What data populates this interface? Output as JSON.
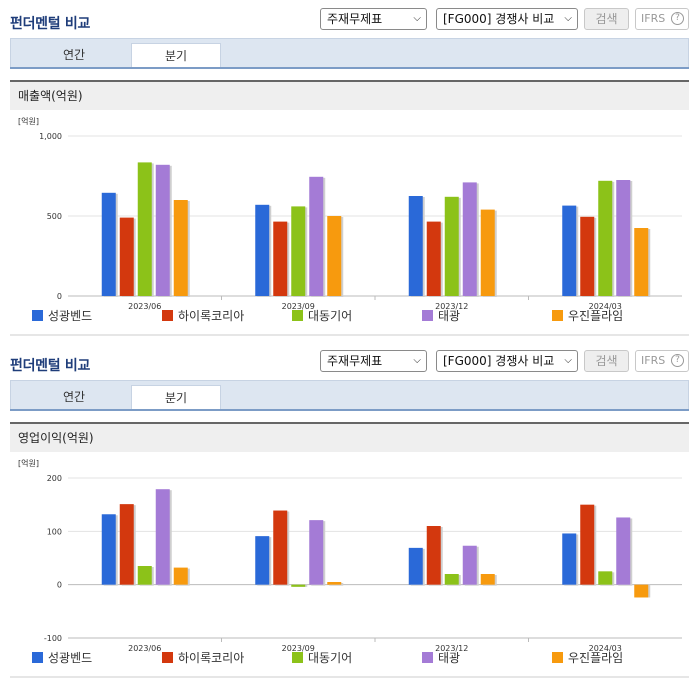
{
  "toolbar": {
    "title": "펀더멘털 비교",
    "select_type": "주재무제표",
    "select_peer": "[FG000] 경쟁사 비교",
    "search_label": "검색",
    "ifrs_label": "IFRS",
    "help_glyph": "?"
  },
  "tabs": {
    "annual": "연간",
    "quarterly": "분기",
    "active": "quarterly"
  },
  "colors": [
    "#2a69d8",
    "#d3380e",
    "#8cc219",
    "#a47bd6",
    "#f79a0e"
  ],
  "chart_data": [
    {
      "type": "bar",
      "title": "매출액(억원)",
      "unit": "[억원]",
      "categories": [
        "2023/06",
        "2023/09",
        "2023/12",
        "2024/03"
      ],
      "ylim": [
        0,
        1000
      ],
      "yticks": [
        0,
        500,
        1000
      ],
      "ytick_labels": [
        "0",
        "500",
        "1,000"
      ],
      "grid": true,
      "legend_position": "bottom",
      "series": [
        {
          "name": "성광벤드",
          "values": [
            645,
            570,
            625,
            565
          ]
        },
        {
          "name": "하이록코리아",
          "values": [
            490,
            465,
            465,
            495
          ]
        },
        {
          "name": "대동기어",
          "values": [
            835,
            560,
            620,
            720
          ]
        },
        {
          "name": "태광",
          "values": [
            820,
            745,
            710,
            725
          ]
        },
        {
          "name": "우진플라임",
          "values": [
            600,
            500,
            540,
            425
          ]
        }
      ]
    },
    {
      "type": "bar",
      "title": "영업이익(억원)",
      "unit": "[억원]",
      "categories": [
        "2023/06",
        "2023/09",
        "2023/12",
        "2024/03"
      ],
      "ylim": [
        -100,
        200
      ],
      "yticks": [
        -100,
        0,
        100,
        200
      ],
      "ytick_labels": [
        "-100",
        "0",
        "100",
        "200"
      ],
      "grid": true,
      "legend_position": "bottom",
      "series": [
        {
          "name": "성광벤드",
          "values": [
            132,
            91,
            69,
            96
          ]
        },
        {
          "name": "하이록코리아",
          "values": [
            151,
            139,
            110,
            150
          ]
        },
        {
          "name": "대동기어",
          "values": [
            35,
            -4,
            20,
            25
          ]
        },
        {
          "name": "태광",
          "values": [
            179,
            121,
            73,
            126
          ]
        },
        {
          "name": "우진플라임",
          "values": [
            32,
            5,
            20,
            -24
          ]
        }
      ]
    }
  ]
}
